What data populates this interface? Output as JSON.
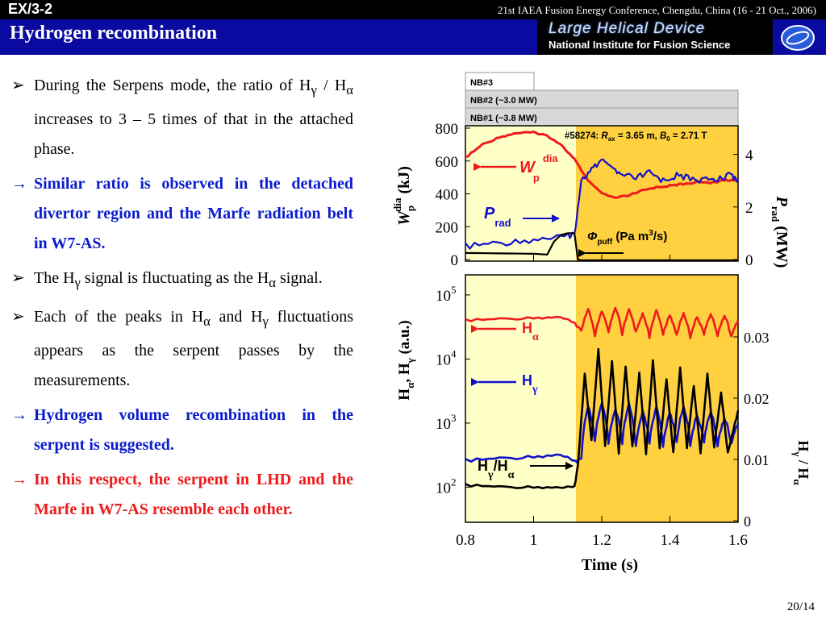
{
  "header": {
    "code": "EX/3-2",
    "conference": "21st IAEA Fusion Energy Conference, Chengdu, China (16 - 21 Oct., 2006)",
    "title": "Hydrogen recombination",
    "logo_line1": "Large Helical Device",
    "logo_line2": "National Institute for Fusion Science",
    "icons": [
      "triangle-bullet-icon",
      "arrow-bullet-icon",
      "nifs-emblem-icon"
    ]
  },
  "bullets": {
    "b1": {
      "a": "During the Serpens mode, the ratio of H",
      "s1": "γ",
      "sep": " / H",
      "s2": "α",
      "b": " increases to 3 – 5 times of that in the attached phase."
    },
    "b2": "Similar ratio is observed in the detached divertor region and the Marfe radiation belt in W7-AS.",
    "b3": {
      "a": "The H",
      "s1": "γ",
      "b": " signal is fluctuating as the H",
      "s2": "α",
      "c": " signal."
    },
    "b4": {
      "a": "Each of the peaks in H",
      "s1": "α",
      "b": " and H",
      "s2": "γ",
      "c": " fluctuations appears as the serpent passes by the measurements."
    },
    "b5": "Hydrogen volume recombination in the serpent is suggested.",
    "b6": "In this respect, the serpent in LHD and the Marfe in W7-AS resemble each other.",
    "marker_triangle": "➢",
    "marker_arrow": "→"
  },
  "page": "20/14",
  "colors": {
    "header_blue": "#0a0aa0",
    "attached_bg": "#ffffc8",
    "serpent_bg": "#ffd040",
    "red": "#ee1b1b",
    "blue": "#1010cc"
  },
  "chart_data": [
    {
      "type": "line",
      "shot_label": "#58274:",
      "r_label": "R",
      "r_sub": "ax",
      "r_value": " = 3.65 m, ",
      "b_label": "B",
      "b_sub": "0",
      "b_value": " = 2.71 T",
      "nb_labels": [
        "NB#3",
        "NB#2 (~3.0 MW)",
        "NB#1 (~3.8 MW)"
      ],
      "left_ylabel": {
        "main": "W",
        "sub": "p",
        "sup": "dia",
        "unit": " (kJ)"
      },
      "right_ylabel": {
        "main": "P",
        "sub": "rad",
        "unit": " (MW)"
      },
      "left_ylim": [
        0,
        800
      ],
      "left_ticks": [
        "0",
        "200",
        "400",
        "600",
        "800"
      ],
      "right_ylim": [
        0,
        5
      ],
      "right_ticks": [
        "0",
        "2",
        "4"
      ],
      "xlim": [
        0.8,
        1.6
      ],
      "annotations": {
        "wp": {
          "main": "W",
          "sub": "p",
          "sup": "dia"
        },
        "prad": {
          "main": "P",
          "sub": "rad"
        },
        "phi": {
          "main": "Φ",
          "sub": "puff",
          "unit": " (Pa m",
          "sup": "3",
          "unit2": "/s)"
        }
      },
      "series": [
        {
          "name": "W_p^dia",
          "axis": "left",
          "color": "#ee1b1b",
          "x": [
            0.8,
            0.85,
            0.9,
            0.95,
            1.0,
            1.04,
            1.08,
            1.12,
            1.16,
            1.2,
            1.24,
            1.28,
            1.32,
            1.36,
            1.4,
            1.44,
            1.48,
            1.52,
            1.56,
            1.6
          ],
          "y": [
            620,
            700,
            745,
            770,
            775,
            755,
            700,
            610,
            480,
            400,
            375,
            390,
            420,
            440,
            450,
            460,
            470,
            470,
            480,
            485
          ]
        },
        {
          "name": "P_rad",
          "axis": "right",
          "color": "#1010cc",
          "x": [
            0.8,
            0.88,
            0.96,
            1.04,
            1.1,
            1.12,
            1.14,
            1.17,
            1.2,
            1.23,
            1.26,
            1.3,
            1.34,
            1.38,
            1.42,
            1.46,
            1.5,
            1.54,
            1.58,
            1.6
          ],
          "y": [
            0.5,
            0.6,
            0.7,
            0.8,
            0.9,
            1.0,
            3.0,
            3.4,
            3.8,
            3.4,
            3.2,
            3.1,
            3.3,
            3.0,
            3.2,
            3.1,
            3.0,
            3.1,
            3.2,
            3.0
          ]
        },
        {
          "name": "Φ_puff",
          "axis": "left",
          "color": "#000000",
          "x": [
            0.8,
            1.0,
            1.04,
            1.06,
            1.08,
            1.1,
            1.12,
            1.13,
            1.14,
            1.16,
            1.6
          ],
          "y": [
            40,
            35,
            30,
            110,
            150,
            160,
            160,
            0,
            -5,
            -5,
            -5
          ]
        }
      ]
    },
    {
      "type": "line",
      "ylabel": {
        "a": "H",
        "s1": "α",
        "b": ", H",
        "s2": "γ",
        "unit": " (a.u.)"
      },
      "log_scale": true,
      "ylim": [
        30,
        200000
      ],
      "ticks": [
        {
          "base": "10",
          "exp": "2",
          "v": 100
        },
        {
          "base": "10",
          "exp": "3",
          "v": 1000
        },
        {
          "base": "10",
          "exp": "4",
          "v": 10000
        },
        {
          "base": "10",
          "exp": "5",
          "v": 100000
        }
      ],
      "right_ylabel": {
        "a": "H",
        "s1": "γ",
        "b": " / H",
        "s2": "α"
      },
      "right_ylim": [
        0,
        0.04
      ],
      "right_ticks": [
        "0",
        "0.01",
        "0.02",
        "0.03"
      ],
      "xlim": [
        0.8,
        1.6
      ],
      "xticks": [
        "0.8",
        "1",
        "1.2",
        "1.4",
        "1.6"
      ],
      "xlabel": "Time (s)",
      "serpent_start": 1.12,
      "annotations": {
        "ha": {
          "main": "H",
          "sub": "α"
        },
        "hg": {
          "main": "H",
          "sub": "γ"
        },
        "ratio": {
          "a": "H",
          "s1": "γ",
          "b": "/H",
          "s2": "α"
        }
      },
      "series": [
        {
          "name": "H_alpha",
          "axis": "left",
          "color": "#ee1b1b",
          "x": [
            0.8,
            0.9,
            1.0,
            1.08,
            1.12,
            1.14,
            1.16,
            1.18,
            1.2,
            1.22,
            1.24,
            1.26,
            1.28,
            1.3,
            1.32,
            1.34,
            1.36,
            1.38,
            1.4,
            1.42,
            1.44,
            1.46,
            1.48,
            1.5,
            1.52,
            1.54,
            1.56,
            1.58,
            1.6
          ],
          "y": [
            40000,
            42000,
            44000,
            45000,
            36000,
            28000,
            60000,
            22000,
            55000,
            25000,
            62000,
            24000,
            58000,
            26000,
            50000,
            22000,
            56000,
            25000,
            47000,
            23000,
            52000,
            22000,
            45000,
            24000,
            50000,
            23000,
            48000,
            22000,
            40000
          ]
        },
        {
          "name": "H_gamma",
          "axis": "left",
          "color": "#1010cc",
          "x": [
            0.8,
            0.9,
            1.0,
            1.08,
            1.12,
            1.14,
            1.16,
            1.18,
            1.2,
            1.22,
            1.24,
            1.26,
            1.28,
            1.3,
            1.32,
            1.34,
            1.36,
            1.38,
            1.4,
            1.42,
            1.44,
            1.46,
            1.48,
            1.5,
            1.52,
            1.54,
            1.56,
            1.58,
            1.6
          ],
          "y": [
            260,
            280,
            300,
            320,
            250,
            280,
            1800,
            500,
            2000,
            450,
            1600,
            480,
            1900,
            420,
            1500,
            500,
            1700,
            450,
            1400,
            480,
            1800,
            460,
            1300,
            500,
            1500,
            440,
            1200,
            460,
            1000
          ]
        },
        {
          "name": "H_gamma/H_alpha",
          "axis": "right",
          "color": "#000000",
          "x": [
            0.8,
            0.9,
            1.0,
            1.08,
            1.12,
            1.13,
            1.15,
            1.17,
            1.19,
            1.21,
            1.23,
            1.25,
            1.27,
            1.29,
            1.31,
            1.33,
            1.35,
            1.37,
            1.39,
            1.41,
            1.43,
            1.45,
            1.47,
            1.49,
            1.51,
            1.53,
            1.55,
            1.57,
            1.6
          ],
          "y": [
            0.0058,
            0.0055,
            0.0055,
            0.0054,
            0.0055,
            0.009,
            0.024,
            0.013,
            0.028,
            0.012,
            0.026,
            0.011,
            0.025,
            0.012,
            0.024,
            0.011,
            0.026,
            0.012,
            0.023,
            0.011,
            0.025,
            0.012,
            0.022,
            0.011,
            0.024,
            0.012,
            0.021,
            0.011,
            0.018
          ]
        }
      ]
    }
  ]
}
